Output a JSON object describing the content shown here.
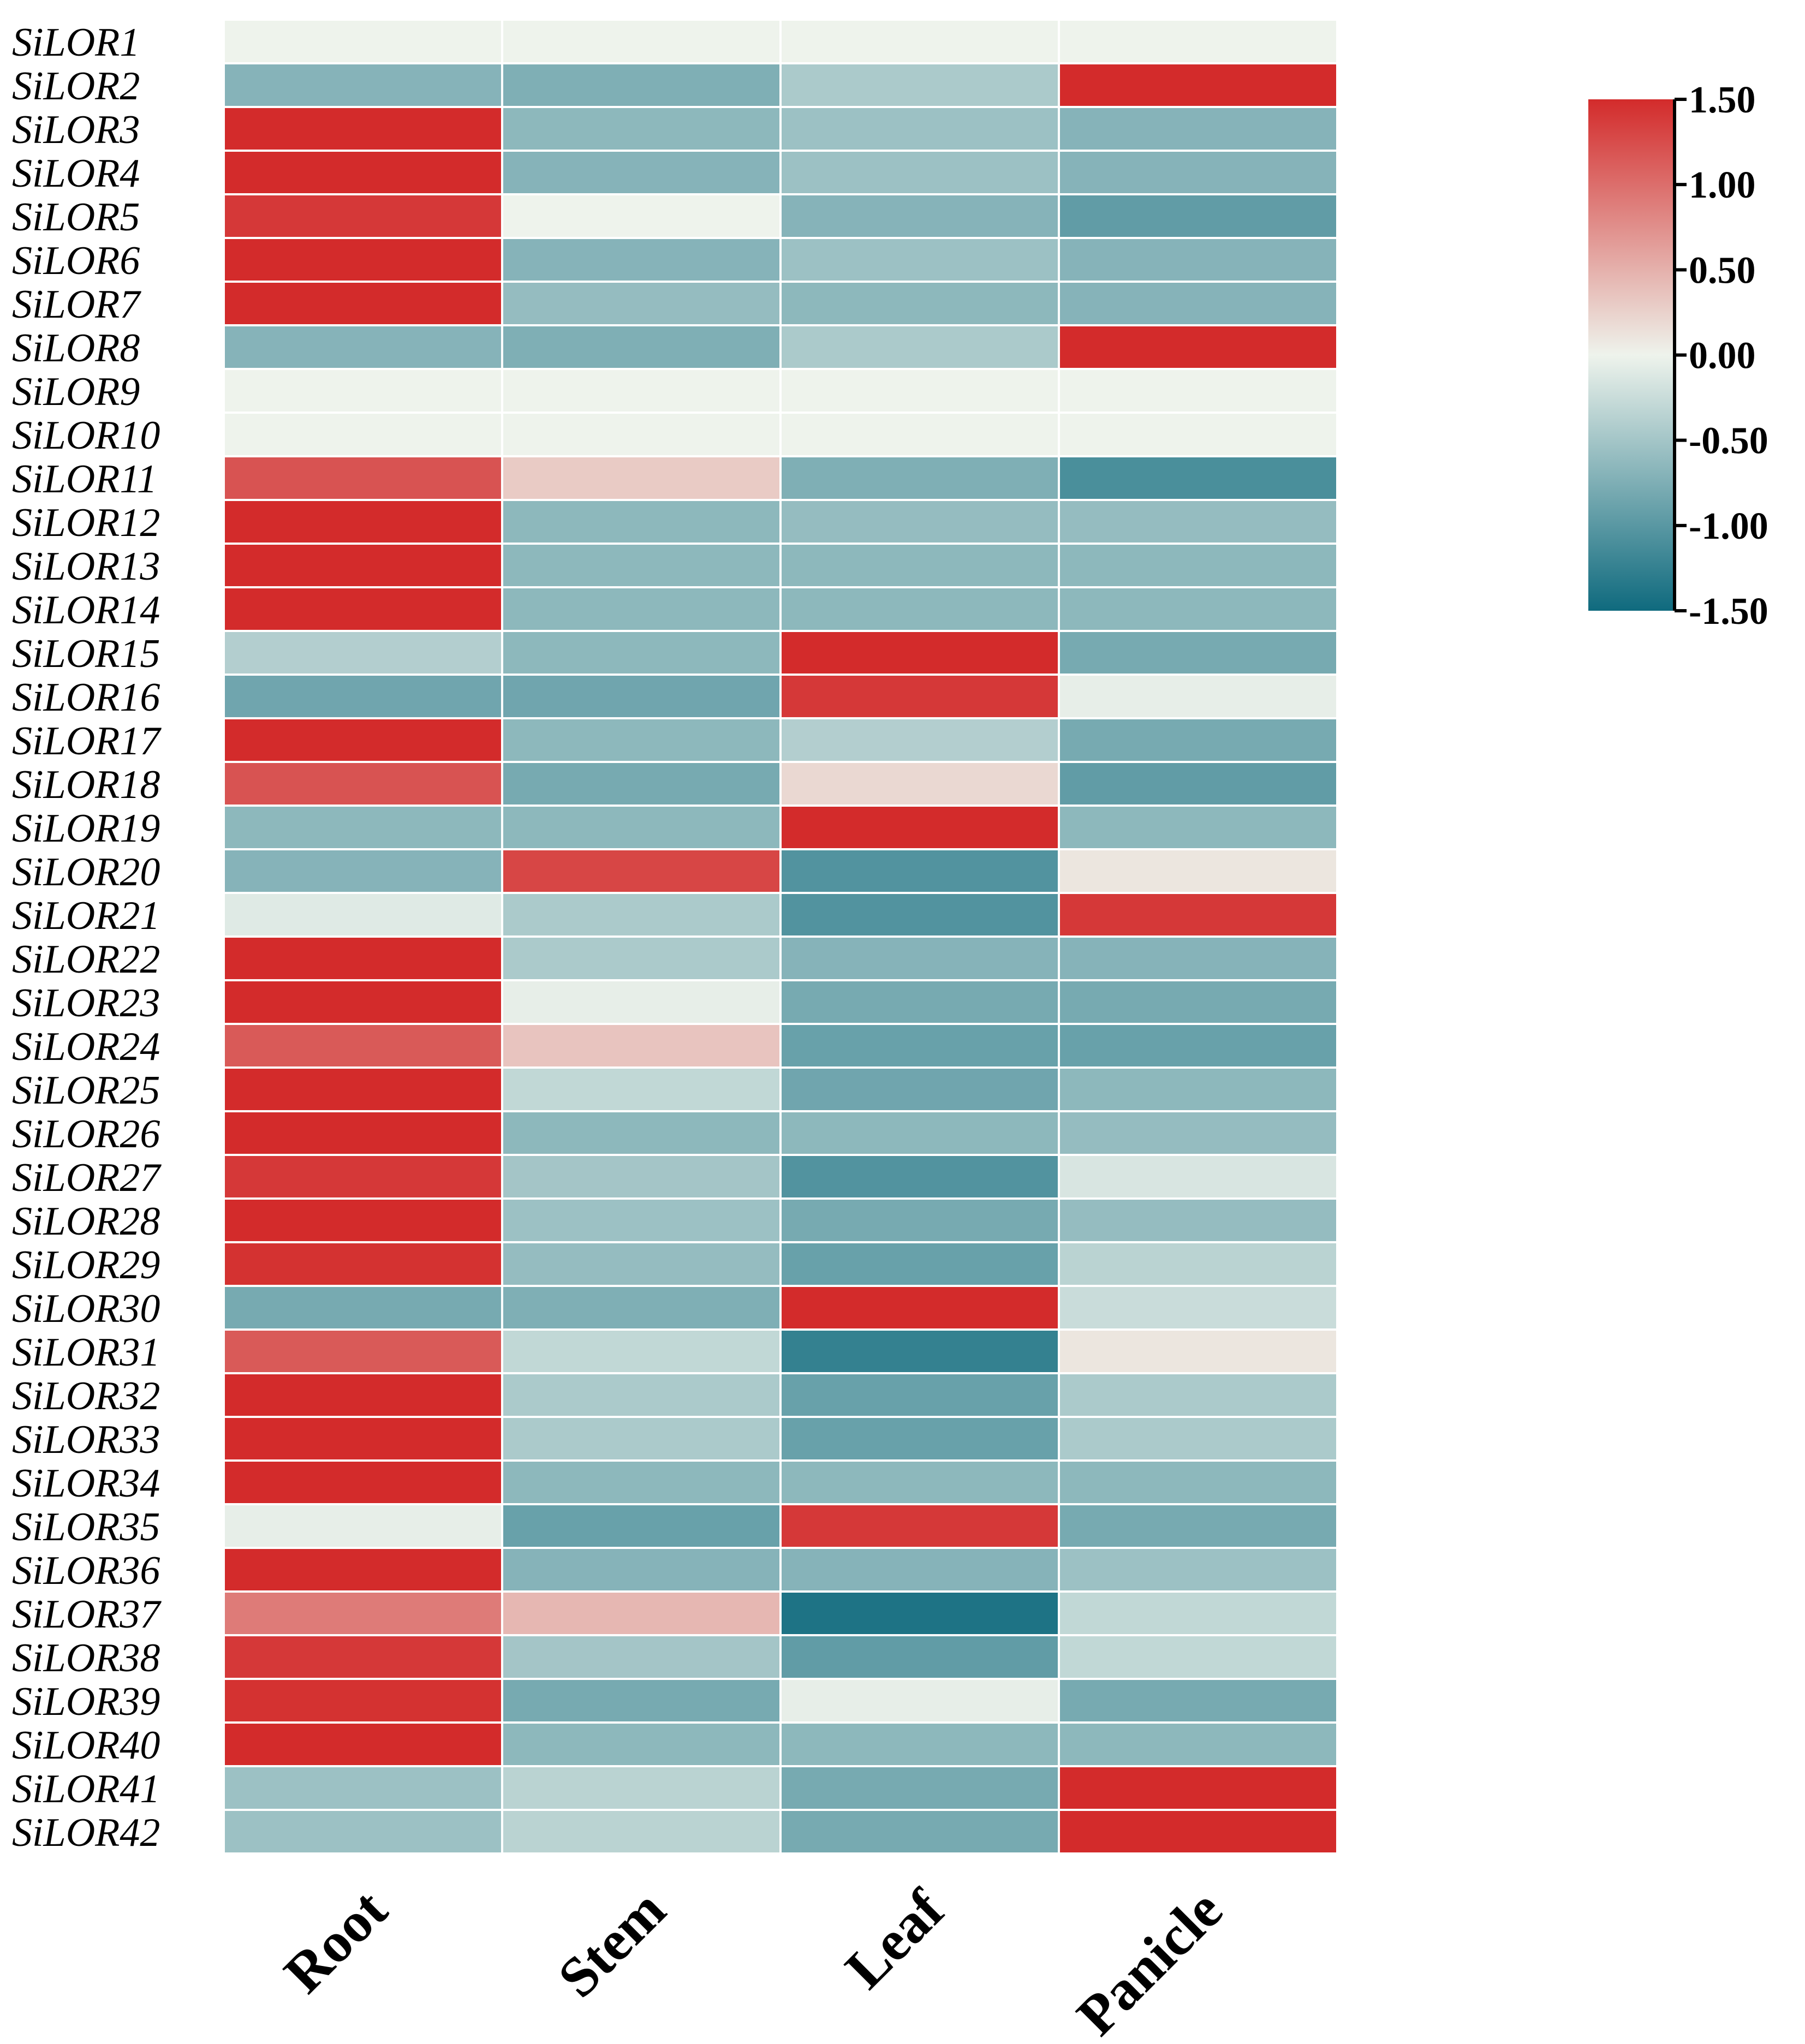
{
  "chart_data": {
    "type": "heatmap",
    "title": "",
    "xlabel": "",
    "ylabel": "",
    "columns": [
      "Root",
      "Stem",
      "Leaf",
      "Panicle"
    ],
    "rows": [
      "SiLOR1",
      "SiLOR2",
      "SiLOR3",
      "SiLOR4",
      "SiLOR5",
      "SiLOR6",
      "SiLOR7",
      "SiLOR8",
      "SiLOR9",
      "SiLOR10",
      "SiLOR11",
      "SiLOR12",
      "SiLOR13",
      "SiLOR14",
      "SiLOR15",
      "SiLOR16",
      "SiLOR17",
      "SiLOR18",
      "SiLOR19",
      "SiLOR20",
      "SiLOR21",
      "SiLOR22",
      "SiLOR23",
      "SiLOR24",
      "SiLOR25",
      "SiLOR26",
      "SiLOR27",
      "SiLOR28",
      "SiLOR29",
      "SiLOR30",
      "SiLOR31",
      "SiLOR32",
      "SiLOR33",
      "SiLOR34",
      "SiLOR35",
      "SiLOR36",
      "SiLOR37",
      "SiLOR38",
      "SiLOR39",
      "SiLOR40",
      "SiLOR41",
      "SiLOR42"
    ],
    "values": [
      [
        0.0,
        0.0,
        0.0,
        0.0
      ],
      [
        -0.7,
        -0.75,
        -0.45,
        1.5
      ],
      [
        1.5,
        -0.65,
        -0.55,
        -0.7
      ],
      [
        1.5,
        -0.7,
        -0.55,
        -0.7
      ],
      [
        1.4,
        0.0,
        -0.7,
        -0.95
      ],
      [
        1.5,
        -0.7,
        -0.55,
        -0.7
      ],
      [
        1.5,
        -0.6,
        -0.65,
        -0.7
      ],
      [
        -0.7,
        -0.75,
        -0.45,
        1.5
      ],
      [
        0.0,
        0.0,
        0.0,
        0.0
      ],
      [
        0.0,
        0.0,
        0.0,
        0.0
      ],
      [
        1.2,
        0.3,
        -0.75,
        -1.1
      ],
      [
        1.5,
        -0.65,
        -0.6,
        -0.6
      ],
      [
        1.5,
        -0.65,
        -0.65,
        -0.65
      ],
      [
        1.5,
        -0.65,
        -0.65,
        -0.65
      ],
      [
        -0.4,
        -0.65,
        1.5,
        -0.8
      ],
      [
        -0.85,
        -0.85,
        1.4,
        -0.05
      ],
      [
        1.5,
        -0.65,
        -0.4,
        -0.8
      ],
      [
        1.2,
        -0.8,
        0.2,
        -0.95
      ],
      [
        -0.65,
        -0.65,
        1.5,
        -0.65
      ],
      [
        -0.7,
        1.3,
        -1.05,
        0.1
      ],
      [
        -0.1,
        -0.45,
        -1.05,
        1.4
      ],
      [
        1.5,
        -0.45,
        -0.7,
        -0.7
      ],
      [
        1.5,
        -0.05,
        -0.8,
        -0.8
      ],
      [
        1.15,
        0.35,
        -0.9,
        -0.9
      ],
      [
        1.5,
        -0.3,
        -0.85,
        -0.65
      ],
      [
        1.5,
        -0.65,
        -0.65,
        -0.6
      ],
      [
        1.4,
        -0.5,
        -1.05,
        -0.15
      ],
      [
        1.5,
        -0.55,
        -0.8,
        -0.6
      ],
      [
        1.45,
        -0.6,
        -0.9,
        -0.35
      ],
      [
        -0.8,
        -0.75,
        1.5,
        -0.25
      ],
      [
        1.15,
        -0.3,
        -1.25,
        0.1
      ],
      [
        1.5,
        -0.45,
        -0.9,
        -0.45
      ],
      [
        1.5,
        -0.45,
        -0.9,
        -0.45
      ],
      [
        1.5,
        -0.65,
        -0.65,
        -0.65
      ],
      [
        -0.05,
        -0.9,
        1.4,
        -0.8
      ],
      [
        1.5,
        -0.7,
        -0.7,
        -0.55
      ],
      [
        0.9,
        0.45,
        -1.4,
        -0.3
      ],
      [
        1.4,
        -0.5,
        -0.95,
        -0.3
      ],
      [
        1.45,
        -0.8,
        -0.05,
        -0.8
      ],
      [
        1.5,
        -0.65,
        -0.65,
        -0.65
      ],
      [
        -0.55,
        -0.35,
        -0.8,
        1.5
      ],
      [
        -0.55,
        -0.35,
        -0.8,
        1.5
      ]
    ],
    "colorbar": {
      "min": -1.5,
      "max": 1.5,
      "ticks": [
        "1.50",
        "1.00",
        "0.50",
        "0.00",
        "-0.50",
        "-1.00",
        "-1.50"
      ],
      "colors": {
        "low": "#0f6a7e",
        "mid": "#eef3ec",
        "high": "#d32b2b"
      }
    }
  }
}
